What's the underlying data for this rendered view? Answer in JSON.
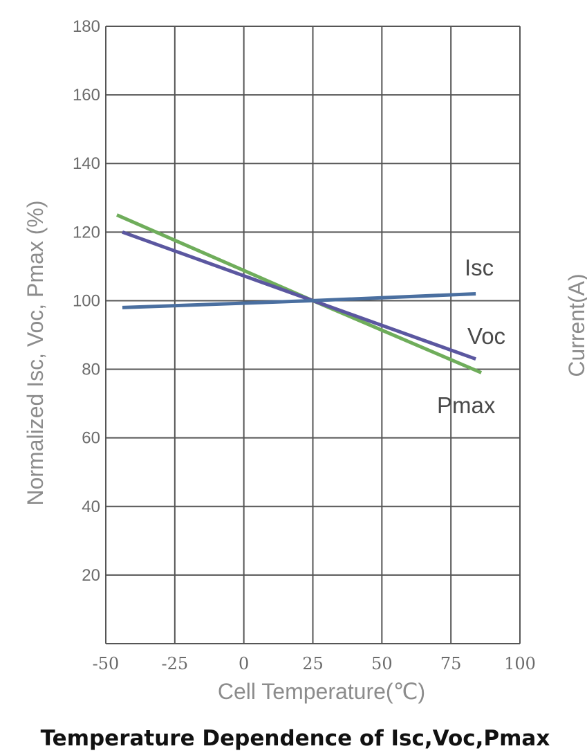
{
  "chart_data": {
    "type": "line",
    "caption": "Temperature Dependence of Isc,Voc,Pmax",
    "xlabel": "Cell Temperature(℃)",
    "ylabel": "Normalized Isc, Voc, Pmax (%)",
    "y2label": "Current(A)",
    "xlim": [
      -50,
      100
    ],
    "ylim": [
      0,
      180
    ],
    "x_ticks": [
      "-50",
      "-25",
      "0",
      "25",
      "50",
      "75",
      "100"
    ],
    "y_ticks": [
      "20",
      "40",
      "60",
      "80",
      "100",
      "120",
      "140",
      "160",
      "180"
    ],
    "grid": true,
    "series": [
      {
        "name": "Isc",
        "color": "#4a6fa0",
        "x": [
          -44,
          25,
          84
        ],
        "y": [
          98,
          100,
          102
        ]
      },
      {
        "name": "Voc",
        "color": "#5b57a0",
        "x": [
          -44,
          25,
          84
        ],
        "y": [
          120,
          100,
          83
        ]
      },
      {
        "name": "Pmax",
        "color": "#6fad5b",
        "x": [
          -46,
          25,
          86
        ],
        "y": [
          125,
          100,
          79
        ]
      }
    ]
  }
}
